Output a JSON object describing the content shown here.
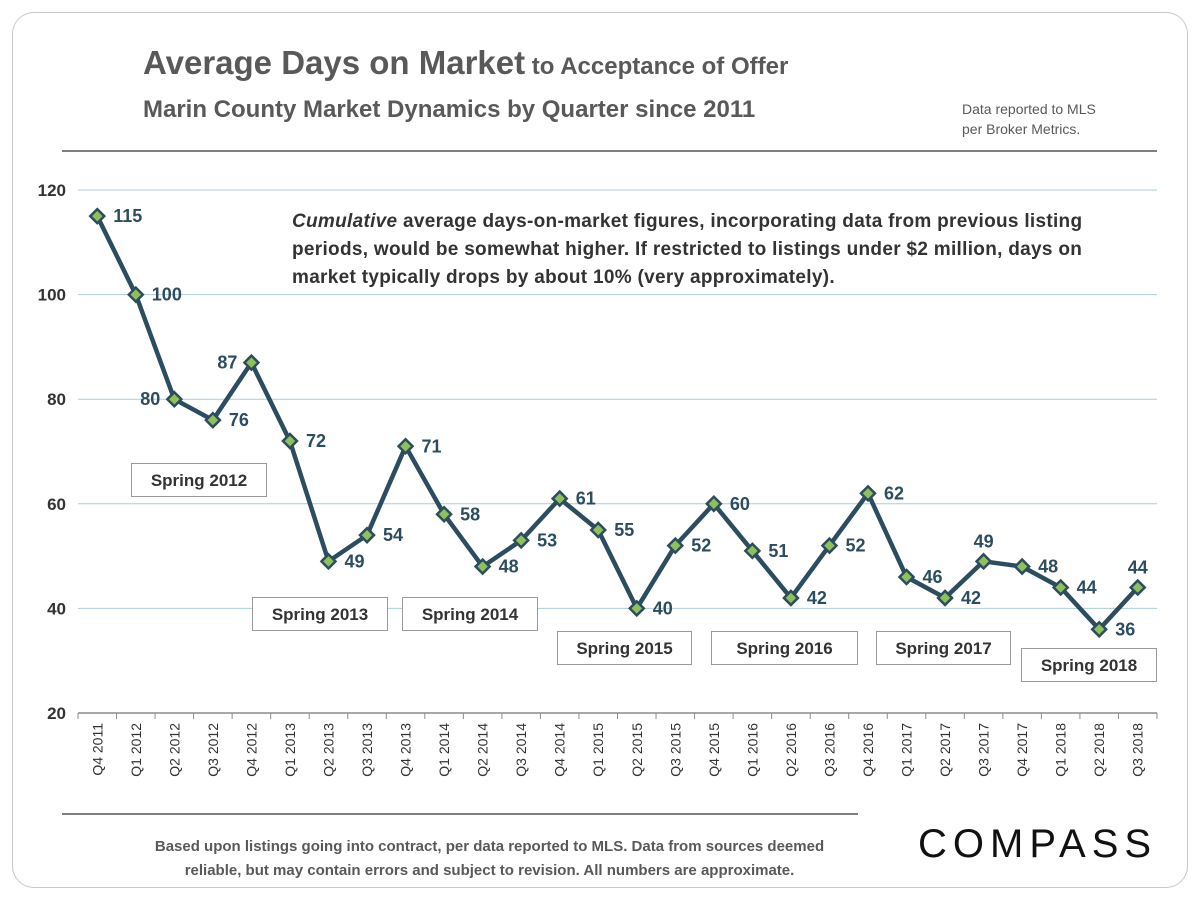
{
  "header": {
    "title_main": "Average Days on Market",
    "title_tail": " to Acceptance of Offer",
    "subtitle": "Marin County Market Dynamics by Quarter since 2011",
    "source_line1": "Data reported to MLS",
    "source_line2": "per Broker Metrics."
  },
  "note": {
    "emphasis": "Cumulative",
    "text": " average days-on-market figures, incorporating data from previous listing periods, would be somewhat higher. If restricted to listings under $2 million,  days on market typically drops by about 10% (very approximately)."
  },
  "footer": {
    "line1": "Based upon listings going into contract, per data reported to MLS. Data from sources deemed",
    "line2": "reliable, but may contain errors and subject to revision. All numbers are approximate."
  },
  "brand": "COMPASS",
  "season_labels": [
    "Spring 2012",
    "Spring 2013",
    "Spring 2014",
    "Spring 2015",
    "Spring 2016",
    "Spring 2017",
    "Spring 2018"
  ],
  "colors": {
    "line": "#2c4d5f",
    "marker_fill": "#8fc05a",
    "grid": "#a9cfd8"
  },
  "chart_data": {
    "type": "line",
    "title": "Average Days on Market to Acceptance of Offer",
    "subtitle": "Marin County Market Dynamics by Quarter since 2011",
    "categories": [
      "Q4 2011",
      "Q1 2012",
      "Q2 2012",
      "Q3 2012",
      "Q4 2012",
      "Q1 2013",
      "Q2 2013",
      "Q3 2013",
      "Q4 2013",
      "Q1 2014",
      "Q2 2014",
      "Q3 2014",
      "Q4 2014",
      "Q1 2015",
      "Q2 2015",
      "Q3 2015",
      "Q4 2015",
      "Q1 2016",
      "Q2 2016",
      "Q3 2016",
      "Q4 2016",
      "Q1 2017",
      "Q2 2017",
      "Q3 2017",
      "Q4 2017",
      "Q1 2018",
      "Q2 2018",
      "Q3 2018"
    ],
    "series": [
      {
        "values": [
          115,
          100,
          80,
          76,
          87,
          72,
          49,
          54,
          71,
          58,
          48,
          53,
          61,
          55,
          40,
          52,
          60,
          51,
          42,
          52,
          62,
          46,
          42,
          49,
          48,
          44,
          36,
          44
        ]
      }
    ],
    "ylim": [
      20,
      120
    ],
    "yticks": [
      20,
      40,
      60,
      80,
      100,
      120
    ],
    "grid": true,
    "legend": "none"
  }
}
